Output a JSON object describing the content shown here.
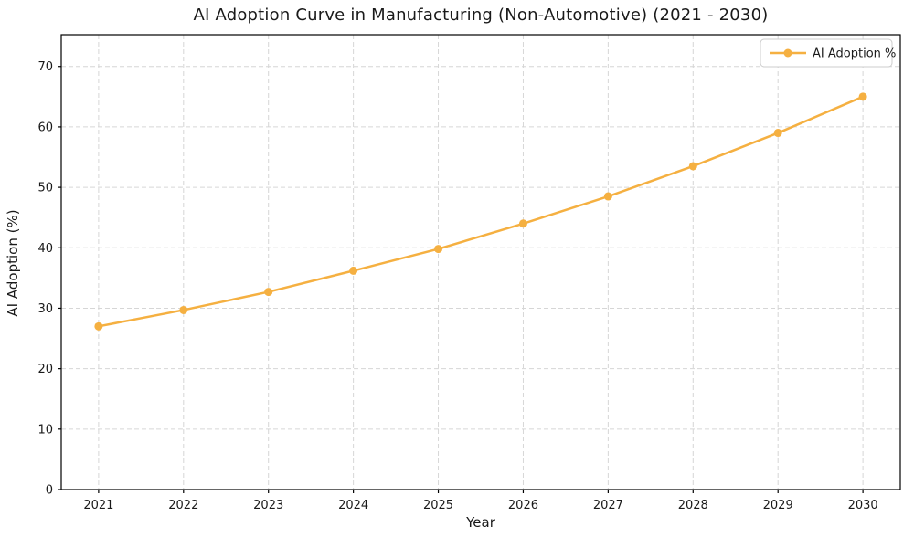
{
  "figure": {
    "background": "#ffffff"
  },
  "chart_data": {
    "type": "line",
    "title": "AI Adoption Curve in Manufacturing (Non-Automotive) (2021 - 2030)",
    "xlabel": "Year",
    "ylabel": "AI Adoption (%)",
    "x": [
      2021,
      2022,
      2023,
      2024,
      2025,
      2026,
      2027,
      2028,
      2029,
      2030
    ],
    "series": [
      {
        "name": "AI Adoption %",
        "values": [
          27.0,
          29.7,
          32.7,
          36.2,
          39.8,
          44.0,
          48.5,
          53.5,
          59.0,
          65.0
        ],
        "color": "#F5B041",
        "marker": "circle",
        "line_width": 2.5,
        "marker_radius": 4.5
      }
    ],
    "xticks": [
      2021,
      2022,
      2023,
      2024,
      2025,
      2026,
      2027,
      2028,
      2029,
      2030
    ],
    "yticks": [
      0,
      10,
      20,
      30,
      40,
      50,
      60,
      70
    ],
    "xlim": [
      2020.56,
      2030.44
    ],
    "ylim": [
      0,
      75.25
    ],
    "grid": {
      "visible": true,
      "style": "dashed",
      "color": "#d6d6d6"
    },
    "legend": {
      "position": "upper right",
      "entries": [
        "AI Adoption %"
      ]
    },
    "spine_color": "#000000",
    "tick_label_size": 13,
    "tick_label_color": "#1a1a1a"
  }
}
